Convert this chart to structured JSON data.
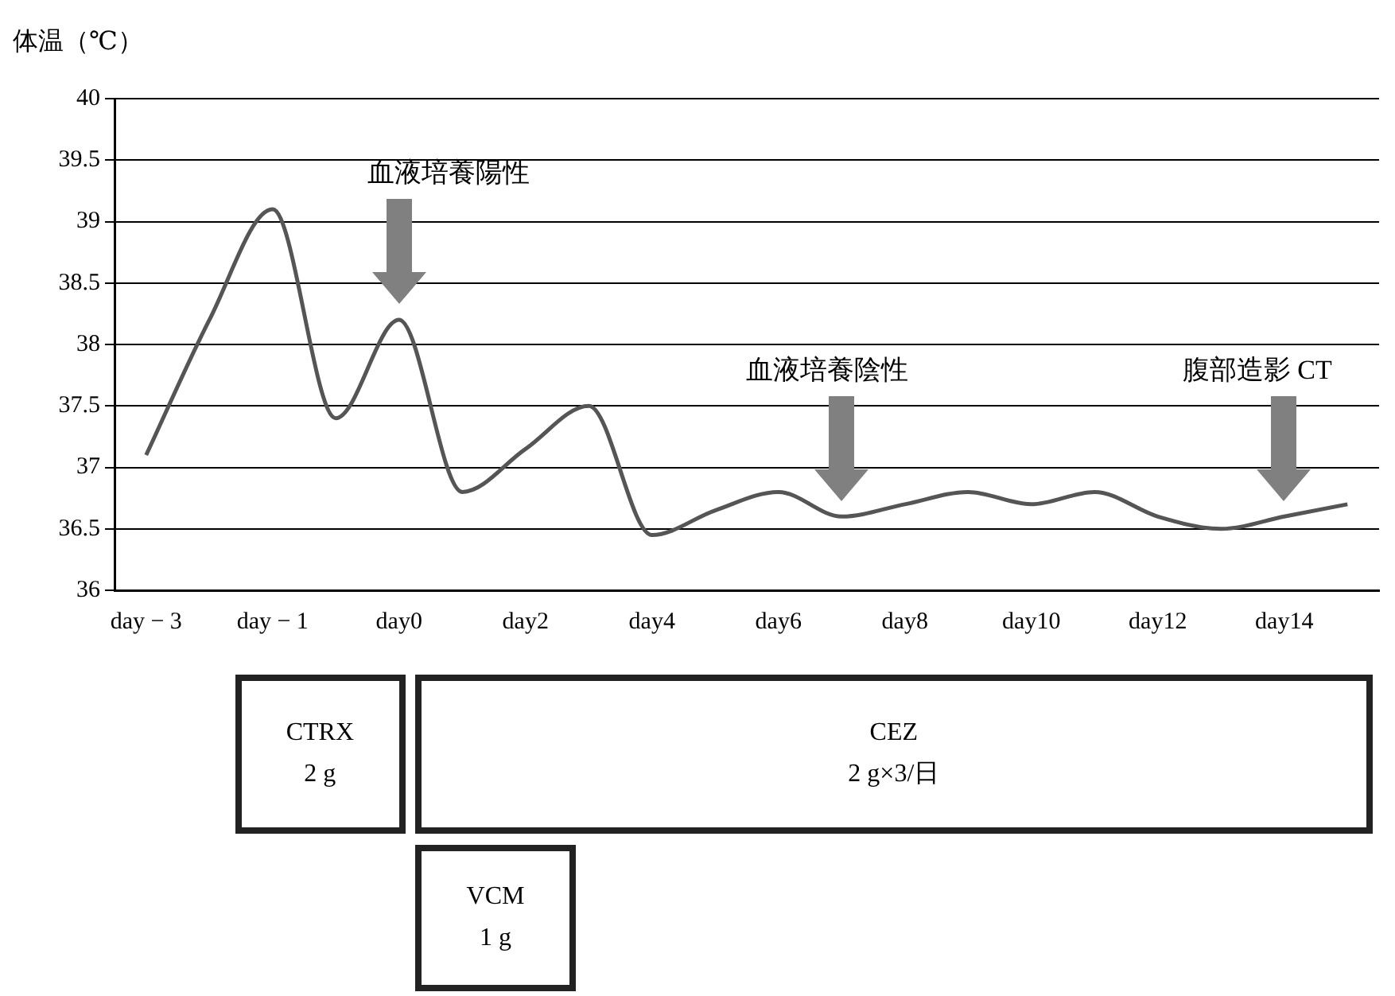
{
  "chart_data": {
    "type": "line",
    "ylabel": "体温（℃）",
    "categories": [
      "day − 3",
      null,
      "day − 1",
      null,
      "day0",
      null,
      "day2",
      null,
      "day4",
      null,
      "day6",
      null,
      "day8",
      null,
      "day10",
      null,
      "day12",
      null,
      "day14",
      null
    ],
    "values": [
      37.1,
      38.2,
      39.1,
      37.4,
      38.2,
      36.8,
      37.15,
      37.5,
      36.45,
      36.65,
      36.8,
      36.6,
      36.7,
      36.8,
      36.7,
      36.8,
      36.6,
      36.5,
      36.6,
      36.7
    ],
    "color": "#555555",
    "ylim": [
      36,
      40
    ],
    "yticks": [
      36,
      36.5,
      37,
      37.5,
      38,
      38.5,
      39,
      39.5,
      40
    ],
    "grid": "y",
    "legend": false,
    "marker": "none",
    "line_style": "solid",
    "annotations": [
      "血液培養陽性",
      "血液培養陰性",
      "腹部造影 CT",
      "CTRX\n2 g",
      "CEZ\n2 g×3/日",
      "VCM\n1 g"
    ]
  }
}
